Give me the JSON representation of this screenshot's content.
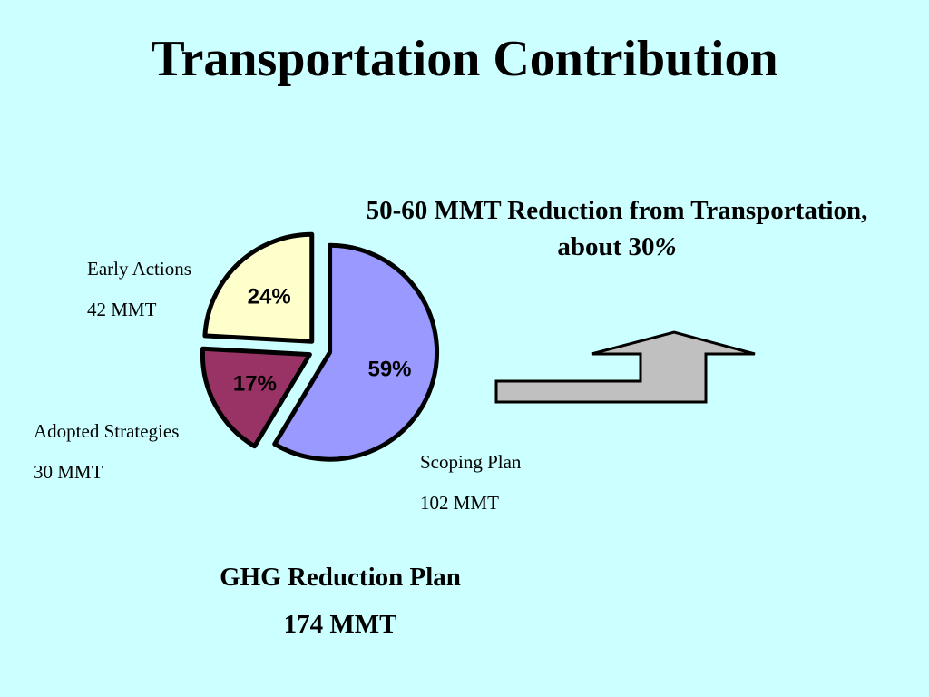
{
  "slide": {
    "title": "Transportation Contribution",
    "callout_line1": "50-60 MMT Reduction from Transportation,",
    "callout_line2_prefix": "about 30",
    "callout_line2_pct": "%",
    "footer_line1": "GHG Reduction Plan",
    "footer_line2": "174 MMT"
  },
  "colors": {
    "background": "#ccffff",
    "scoping_plan": "#9999ff",
    "early_actions": "#ffffcc",
    "adopted_strategies": "#993366",
    "arrow": "#c0c0c0"
  },
  "chart_data": {
    "type": "pie",
    "title": "",
    "slices": [
      {
        "name": "Scoping Plan",
        "value": 102,
        "unit": "MMT",
        "percent_label": "59%"
      },
      {
        "name": "Adopted Strategies",
        "value": 30,
        "unit": "MMT",
        "percent_label": "17%"
      },
      {
        "name": "Early Actions",
        "value": 42,
        "unit": "MMT",
        "percent_label": "24%"
      }
    ],
    "slice_labels": {
      "early_actions": {
        "name": "Early Actions",
        "amount": "42 MMT"
      },
      "adopted_strategies": {
        "name": "Adopted Strategies",
        "amount": "30 MMT"
      },
      "scoping_plan": {
        "name": "Scoping Plan",
        "amount": "102 MMT"
      }
    },
    "exploded": true,
    "legend": "none"
  }
}
